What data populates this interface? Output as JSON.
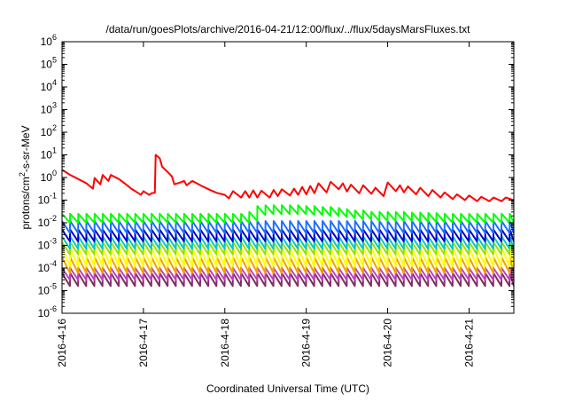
{
  "chart_data": {
    "type": "line",
    "title": "/data/run/goesPlots/archive/2016-04-21/12:00/flux/../flux/5daysMarsFluxes.txt",
    "xlabel": "Coordinated Universal Time (UTC)",
    "ylabel": "protons/cm²-s-sr-MeV",
    "ylabel_parts": {
      "pre": "protons/cm",
      "sup": "2",
      "post": "-s-sr-MeV"
    },
    "yscale": "log",
    "ylim": [
      -6,
      6
    ],
    "yticks": [
      -6,
      -5,
      -4,
      -3,
      -2,
      -1,
      0,
      1,
      2,
      3,
      4,
      5,
      6
    ],
    "xlim": [
      0,
      5.55
    ],
    "x_unit": "days since 2016-4-16 00:00 UTC",
    "xticks": [
      0,
      1,
      2,
      3,
      4,
      5
    ],
    "xtick_labels": [
      "2016-4-16",
      "2016-4-17",
      "2016-4-18",
      "2016-4-19",
      "2016-4-20",
      "2016-4-21"
    ],
    "grid": false,
    "legend": "none",
    "series": [
      {
        "color": "#ff0000",
        "points": [
          [
            0.0,
            2.2
          ],
          [
            0.1,
            1.3
          ],
          [
            0.2,
            0.85
          ],
          [
            0.3,
            0.55
          ],
          [
            0.38,
            0.32
          ],
          [
            0.4,
            0.95
          ],
          [
            0.47,
            0.5
          ],
          [
            0.5,
            1.3
          ],
          [
            0.57,
            0.7
          ],
          [
            0.6,
            1.3
          ],
          [
            0.7,
            0.85
          ],
          [
            0.8,
            0.45
          ],
          [
            0.85,
            0.32
          ],
          [
            0.9,
            0.25
          ],
          [
            0.97,
            0.17
          ],
          [
            1.0,
            0.25
          ],
          [
            1.07,
            0.17
          ],
          [
            1.1,
            0.2
          ],
          [
            1.14,
            0.21
          ],
          [
            1.15,
            10.0
          ],
          [
            1.2,
            7.0
          ],
          [
            1.23,
            3.0
          ],
          [
            1.3,
            1.7
          ],
          [
            1.35,
            1.1
          ],
          [
            1.38,
            0.5
          ],
          [
            1.45,
            0.6
          ],
          [
            1.5,
            0.7
          ],
          [
            1.53,
            0.45
          ],
          [
            1.6,
            0.7
          ],
          [
            1.7,
            0.45
          ],
          [
            1.8,
            0.3
          ],
          [
            1.9,
            0.21
          ],
          [
            2.0,
            0.17
          ],
          [
            2.05,
            0.12
          ],
          [
            2.1,
            0.25
          ],
          [
            2.2,
            0.13
          ],
          [
            2.25,
            0.25
          ],
          [
            2.3,
            0.13
          ],
          [
            2.35,
            0.27
          ],
          [
            2.4,
            0.13
          ],
          [
            2.45,
            0.26
          ],
          [
            2.55,
            0.13
          ],
          [
            2.6,
            0.28
          ],
          [
            2.65,
            0.15
          ],
          [
            2.7,
            0.3
          ],
          [
            2.8,
            0.16
          ],
          [
            2.85,
            0.32
          ],
          [
            2.9,
            0.17
          ],
          [
            2.95,
            0.38
          ],
          [
            3.0,
            0.18
          ],
          [
            3.05,
            0.42
          ],
          [
            3.1,
            0.2
          ],
          [
            3.15,
            0.55
          ],
          [
            3.25,
            0.22
          ],
          [
            3.3,
            0.65
          ],
          [
            3.4,
            0.3
          ],
          [
            3.45,
            0.55
          ],
          [
            3.5,
            0.24
          ],
          [
            3.55,
            0.48
          ],
          [
            3.65,
            0.2
          ],
          [
            3.7,
            0.45
          ],
          [
            3.8,
            0.19
          ],
          [
            3.85,
            0.35
          ],
          [
            3.95,
            0.15
          ],
          [
            4.0,
            0.6
          ],
          [
            4.1,
            0.25
          ],
          [
            4.15,
            0.45
          ],
          [
            4.2,
            0.22
          ],
          [
            4.25,
            0.4
          ],
          [
            4.35,
            0.18
          ],
          [
            4.4,
            0.35
          ],
          [
            4.5,
            0.15
          ],
          [
            4.55,
            0.28
          ],
          [
            4.65,
            0.13
          ],
          [
            4.7,
            0.22
          ],
          [
            4.8,
            0.11
          ],
          [
            4.85,
            0.18
          ],
          [
            4.95,
            0.1
          ],
          [
            5.0,
            0.16
          ],
          [
            5.1,
            0.09
          ],
          [
            5.15,
            0.14
          ],
          [
            5.25,
            0.09
          ],
          [
            5.3,
            0.13
          ],
          [
            5.4,
            0.09
          ],
          [
            5.45,
            0.13
          ],
          [
            5.55,
            0.1
          ]
        ]
      },
      {
        "color": "#00ff00",
        "pattern": "sawtooth",
        "period_days": 0.1,
        "peak_values": [
          0.025,
          0.025,
          0.025,
          0.025,
          0.025,
          0.025,
          0.025,
          0.025,
          0.025,
          0.025,
          0.025,
          0.025,
          0.025,
          0.025,
          0.025,
          0.025,
          0.025,
          0.025,
          0.025,
          0.025,
          0.025,
          0.025,
          0.025,
          0.03,
          0.055,
          0.06,
          0.06,
          0.06,
          0.06,
          0.06,
          0.055,
          0.055,
          0.05,
          0.05,
          0.045,
          0.04,
          0.035,
          0.035,
          0.03,
          0.03,
          0.03,
          0.03,
          0.03,
          0.028,
          0.028,
          0.027,
          0.027,
          0.025,
          0.025,
          0.025,
          0.025,
          0.025,
          0.025,
          0.025,
          0.025,
          0.025
        ],
        "trough_factor": 0.4
      },
      {
        "color": "#1e6fff",
        "pattern": "sawtooth",
        "period_days": 0.1,
        "peak": 0.012,
        "trough": 0.0035
      },
      {
        "color": "#0000c8",
        "pattern": "sawtooth",
        "period_days": 0.1,
        "peak": 0.005,
        "trough": 0.0015
      },
      {
        "color": "#00c8c8",
        "pattern": "sawtooth",
        "period_days": 0.1,
        "peak": 0.0025,
        "trough": 0.0007
      },
      {
        "color": "#98e000",
        "pattern": "sawtooth",
        "period_days": 0.1,
        "peak": 0.0014,
        "trough": 0.0004
      },
      {
        "color": "#ffff00",
        "pattern": "sawtooth",
        "period_days": 0.1,
        "peak": 0.0008,
        "trough": 0.00012
      },
      {
        "color": "#f0a000",
        "pattern": "sawtooth",
        "period_days": 0.1,
        "peak": 0.0003,
        "trough": 6e-05
      },
      {
        "color": "#c040c0",
        "pattern": "sawtooth",
        "period_days": 0.1,
        "peak": 0.0001,
        "trough": 3e-05
      },
      {
        "color": "#803060",
        "pattern": "sawtooth",
        "period_days": 0.1,
        "peak": 6e-05,
        "trough": 1.6e-05
      }
    ]
  }
}
